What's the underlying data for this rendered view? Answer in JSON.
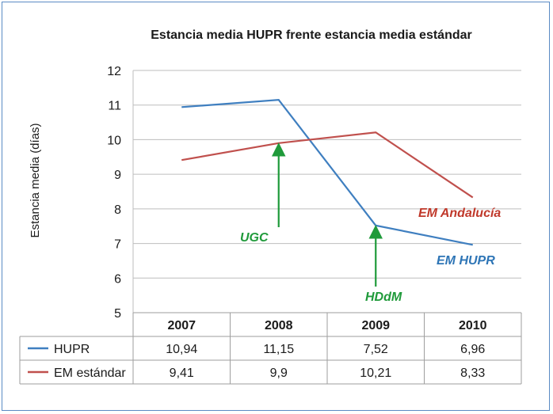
{
  "chart_data": {
    "type": "line",
    "title": "Estancia media HUPR frente estancia media estándar",
    "ylabel": "Estancia media (días)",
    "xlabel": "",
    "ylim": [
      5,
      12
    ],
    "y_ticks": [
      "5",
      "6",
      "7",
      "8",
      "9",
      "10",
      "11",
      "12"
    ],
    "grid": "horizontal",
    "categories": [
      "2007",
      "2008",
      "2009",
      "2010"
    ],
    "series": [
      {
        "name": "HUPR",
        "color": "#3f7fc0",
        "values": [
          10.94,
          11.15,
          7.52,
          6.96
        ],
        "labels": [
          "10,94",
          "11,15",
          "7,52",
          "6,96"
        ]
      },
      {
        "name": "EM estándar",
        "color": "#c0504d",
        "values": [
          9.41,
          9.9,
          10.21,
          8.33
        ],
        "labels": [
          "9,41",
          "9,9",
          "10,21",
          "8,33"
        ]
      }
    ],
    "annotations": [
      {
        "text": "EM Andalucía",
        "color": "#c0392b"
      },
      {
        "text": "EM HUPR",
        "color": "#2e75b6"
      },
      {
        "text": "UGC",
        "color": "#1f9a3a",
        "arrow_to": {
          "x": "2008",
          "y": 9.9
        }
      },
      {
        "text": "HDdM",
        "color": "#1f9a3a",
        "arrow_to": {
          "x": "2009",
          "y": 7.52
        }
      }
    ],
    "legend": "data-table-left"
  }
}
